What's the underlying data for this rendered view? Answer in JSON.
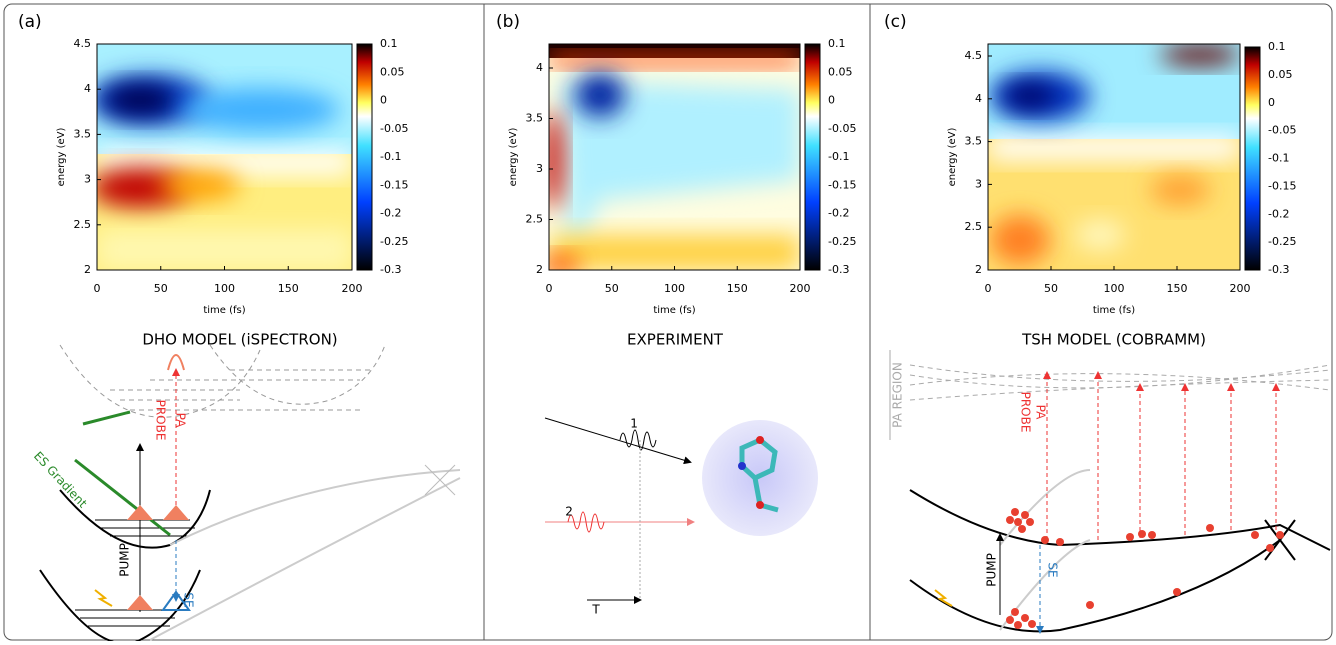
{
  "panels": [
    {
      "label": "(a)",
      "ylabel": "energy (eV)",
      "xlabel": "time (fs)",
      "yticks": [
        "4.5",
        "4",
        "3.5",
        "3",
        "2.5",
        "2"
      ],
      "xticks": [
        "0",
        "50",
        "100",
        "150",
        "200"
      ],
      "colorbar_ticks": [
        "0.1",
        "0.05",
        "0",
        "-0.05",
        "-0.1",
        "-0.15",
        "-0.2",
        "-0.25",
        "-0.3"
      ],
      "title": "DHO MODEL (iSPECTRON)",
      "diagram_labels": [
        "ES Gradient",
        "PUMP",
        "PROBE",
        "PA",
        "SE"
      ]
    },
    {
      "label": "(b)",
      "ylabel": "energy (eV)",
      "xlabel": "time (fs)",
      "yticks": [
        "4",
        "3.5",
        "3",
        "2.5",
        "2"
      ],
      "xticks": [
        "0",
        "50",
        "100",
        "150",
        "200"
      ],
      "colorbar_ticks": [
        "0.1",
        "0.05",
        "0",
        "-0.05",
        "-0.1",
        "-0.15",
        "-0.2",
        "-0.25",
        "-0.3"
      ],
      "title": "EXPERIMENT",
      "diagram_labels": [
        "1",
        "2",
        "T"
      ]
    },
    {
      "label": "(c)",
      "ylabel": "energy (eV)",
      "xlabel": "time (fs)",
      "yticks": [
        "4.5",
        "4",
        "3.5",
        "3",
        "2.5",
        "2"
      ],
      "xticks": [
        "0",
        "50",
        "100",
        "150",
        "200"
      ],
      "colorbar_ticks": [
        "0.1",
        "0.05",
        "0",
        "-0.05",
        "-0.1",
        "-0.15",
        "-0.2",
        "-0.25",
        "-0.3"
      ],
      "title": "TSH MODEL (COBRAMM)",
      "diagram_labels": [
        "PA REGION",
        "PROBE",
        "PA",
        "PUMP",
        "SE"
      ]
    }
  ]
}
